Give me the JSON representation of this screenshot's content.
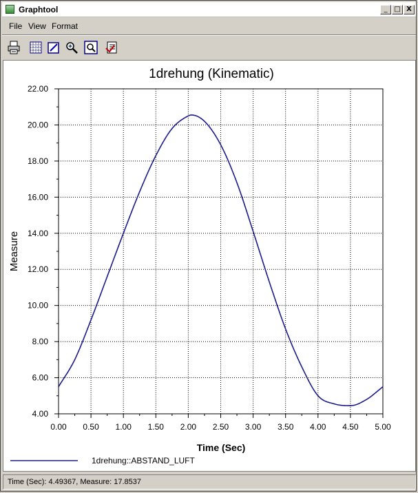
{
  "window": {
    "title": "Graphtool"
  },
  "titlebar_buttons": {
    "minimize": "_",
    "maximize": "□",
    "close": "X"
  },
  "menu": {
    "items": [
      "File",
      "View",
      "Format"
    ]
  },
  "toolbar": {
    "buttons": [
      "print-icon",
      "grid-icon",
      "edit-icon",
      "zoom-in-icon",
      "zoom-fit-icon",
      "export-icon"
    ]
  },
  "colors": {
    "series": "#1a1a8c",
    "grid": "#000000",
    "background": "#ffffff"
  },
  "chart_data": {
    "type": "line",
    "title": "1drehung (Kinematic)",
    "xlabel": "Time (Sec)",
    "ylabel": "Measure",
    "xlim": [
      0,
      5
    ],
    "ylim": [
      4,
      22
    ],
    "x_ticks": [
      "0.00",
      "0.50",
      "1.00",
      "1.50",
      "2.00",
      "2.50",
      "3.00",
      "3.50",
      "4.00",
      "4.50",
      "5.00"
    ],
    "y_ticks": [
      "4.00",
      "6.00",
      "8.00",
      "10.00",
      "12.00",
      "14.00",
      "16.00",
      "18.00",
      "20.00",
      "22.00"
    ],
    "grid": true,
    "legend_position": "bottom-left",
    "series": [
      {
        "name": "1drehung::ABSTAND_LUFT",
        "x": [
          0,
          0.25,
          0.5,
          0.75,
          1.0,
          1.25,
          1.5,
          1.75,
          2.0,
          2.05,
          2.25,
          2.5,
          2.75,
          3.0,
          3.25,
          3.5,
          3.75,
          4.0,
          4.25,
          4.5,
          4.75,
          5.0
        ],
        "values": [
          5.5,
          7.0,
          9.2,
          11.6,
          14.0,
          16.3,
          18.3,
          19.8,
          20.5,
          20.55,
          20.2,
          18.9,
          16.8,
          14.1,
          11.3,
          8.7,
          6.6,
          5.0,
          4.55,
          4.45,
          4.8,
          5.5
        ]
      }
    ]
  },
  "status": {
    "text": "Time (Sec): 4.49367, Measure: 17.8537"
  }
}
